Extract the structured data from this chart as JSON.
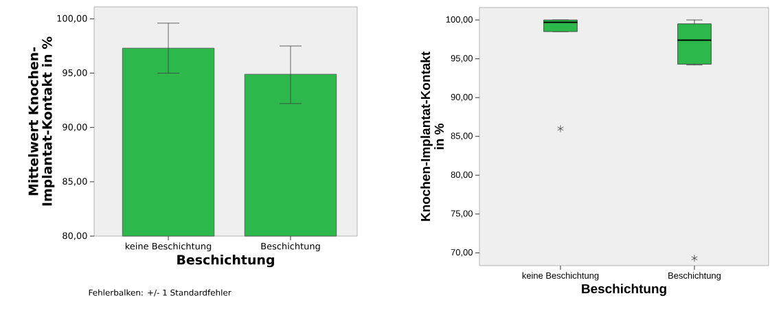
{
  "chart_data": [
    {
      "type": "bar",
      "xlabel": "Beschichtung",
      "ylabel": "Mittelwert Knochen-\nImplantat-Kontakt in %",
      "categories": [
        "keine Beschichtung",
        "Beschichtung"
      ],
      "values": [
        97.3,
        94.9
      ],
      "errors": [
        [
          95.0,
          99.6
        ],
        [
          92.2,
          97.5
        ]
      ],
      "color": "#2db84b",
      "ylim": [
        80,
        101.1
      ],
      "yticks": [
        {
          "value": 80,
          "label": "80,00"
        },
        {
          "value": 85,
          "label": "85,00"
        },
        {
          "value": 90,
          "label": "90,00"
        },
        {
          "value": 95,
          "label": "95,00"
        },
        {
          "value": 100,
          "label": "100,00"
        }
      ],
      "annotations": [
        "Fehlerbalken: +/- 1 Standardfehler"
      ]
    },
    {
      "type": "box",
      "xlabel": "Beschichtung",
      "ylabel": "Knochen-Implantat-Kontakt\nin %",
      "categories": [
        "keine Beschichtung",
        "Beschichtung"
      ],
      "color": "#2db84b",
      "ylim": [
        68.35,
        101.6
      ],
      "boxes": [
        {
          "low": 98.5,
          "q1": 98.5,
          "median": 99.7,
          "q3": 100.0,
          "high": 100.0,
          "outliers": [
            86.0
          ]
        },
        {
          "low": 94.2,
          "q1": 94.3,
          "median": 97.4,
          "q3": 99.5,
          "high": 100.0,
          "outliers": [
            69.3
          ]
        }
      ],
      "yticks": [
        {
          "value": 70,
          "label": "70,00"
        },
        {
          "value": 75,
          "label": "75,00"
        },
        {
          "value": 80,
          "label": "80,00"
        },
        {
          "value": 85,
          "label": "85,00"
        },
        {
          "value": 90,
          "label": "90,00"
        },
        {
          "value": 95,
          "label": "95,00"
        },
        {
          "value": 100,
          "label": "100,00"
        }
      ]
    }
  ]
}
